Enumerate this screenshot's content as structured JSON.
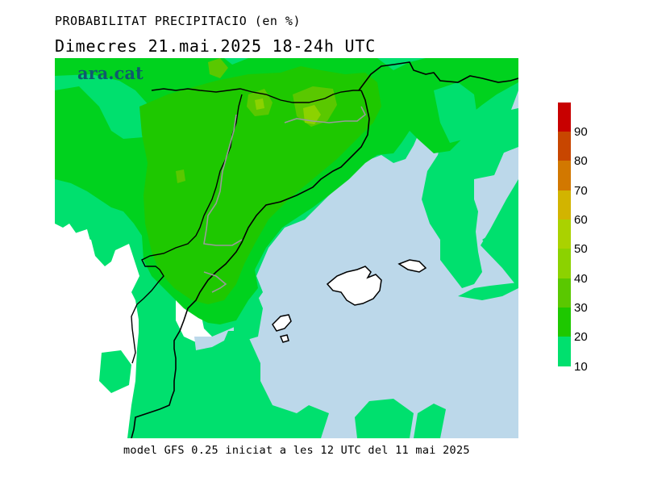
{
  "title": "PROBABILITAT PRECIPITACIO (en %)",
  "subtitle": "Dimecres  21.mai.2025 18-24h UTC",
  "footer": "model GFS 0.25 iniciat a les 12 UTC del 11 mai 2025",
  "brand": "ara.cat",
  "colors": {
    "sea": "#bcd8ea",
    "p10": "#00e06e",
    "p20": "#00d21e",
    "p30": "#1ec800",
    "p40": "#5ac800",
    "p50": "#8cd200",
    "p60": "#aad200",
    "p70": "#d2b400",
    "p80": "#d27800",
    "p90": "#c84600",
    "p100": "#c80000"
  },
  "legend": {
    "labels": [
      "90",
      "80",
      "70",
      "60",
      "50",
      "40",
      "30",
      "20",
      "10"
    ]
  }
}
